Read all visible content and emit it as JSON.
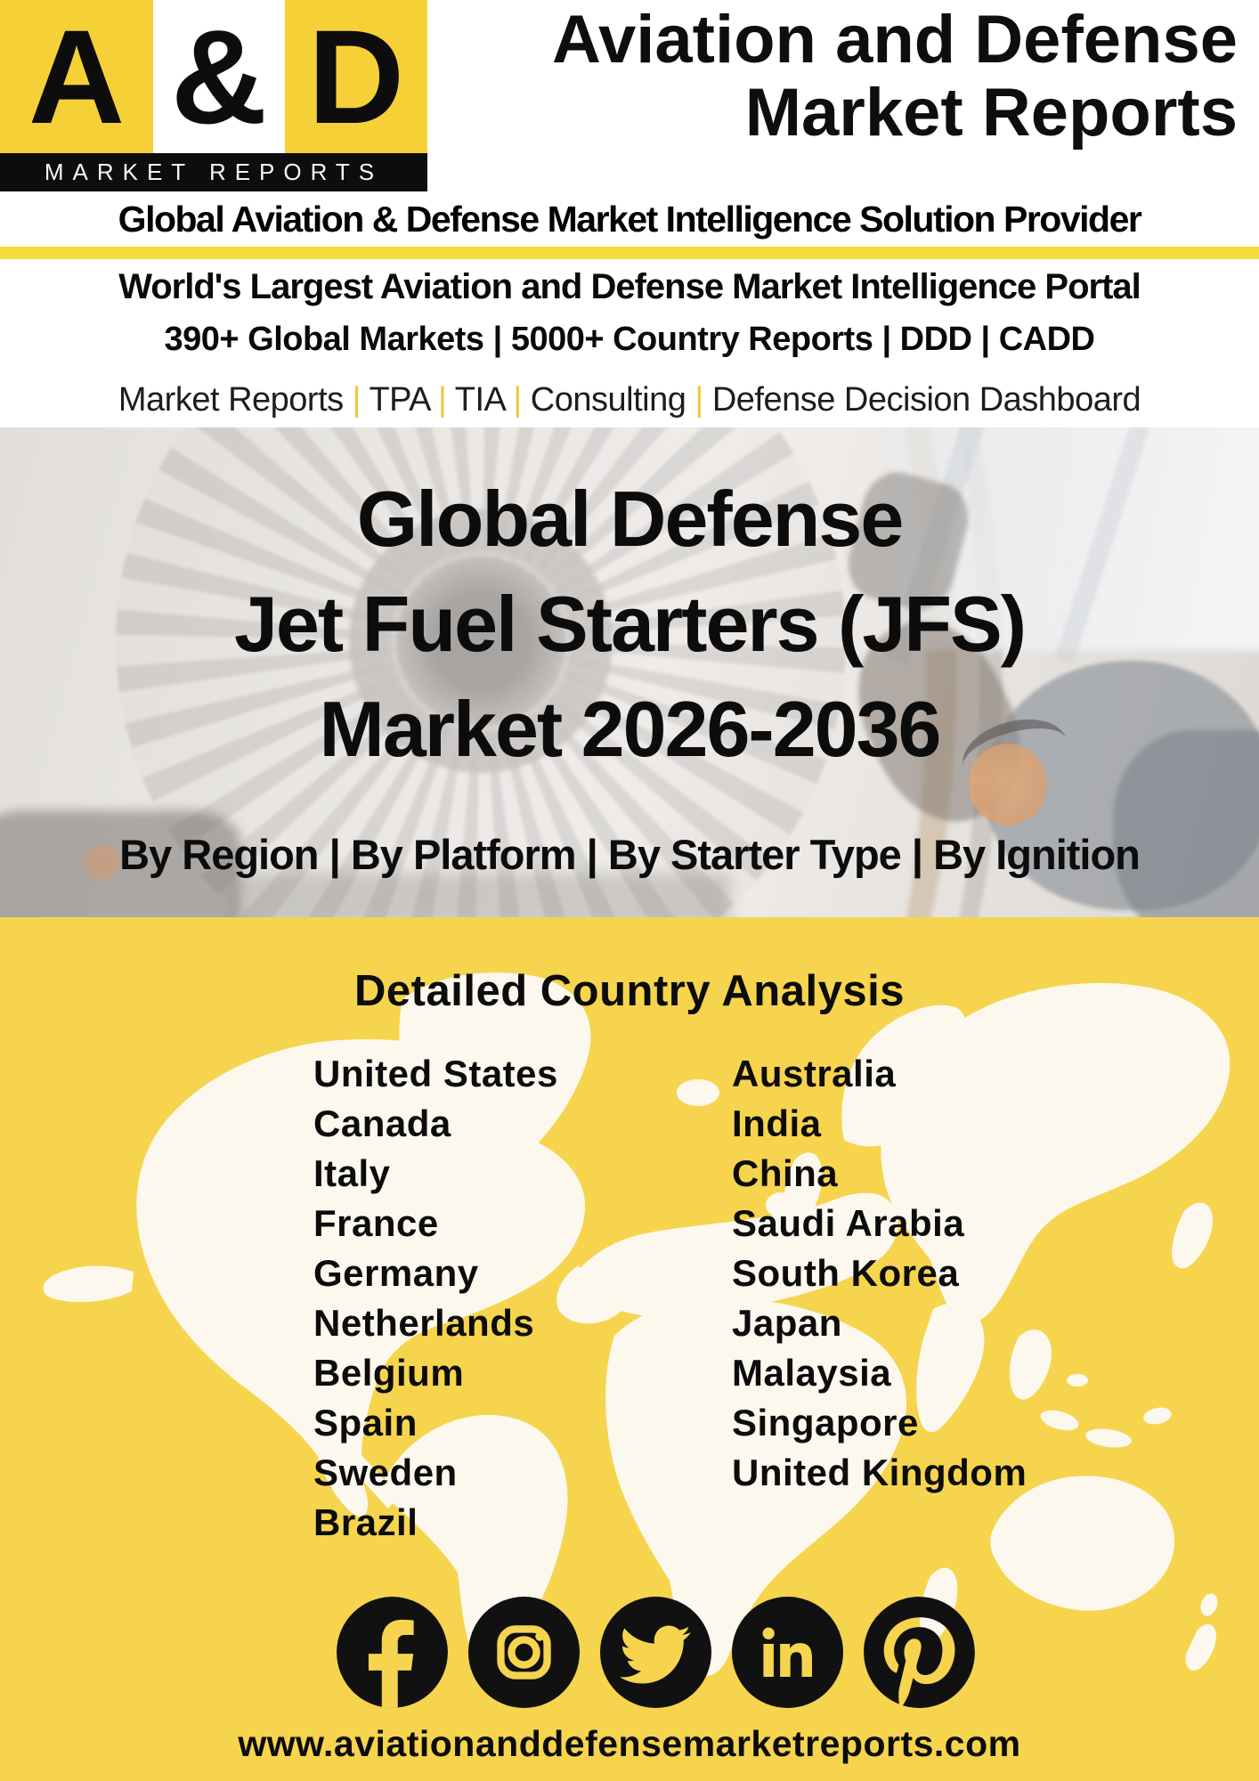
{
  "brand": {
    "logo": {
      "letters": [
        "A",
        "&",
        "D"
      ],
      "caption": "MARKET REPORTS"
    },
    "title_line1": "Aviation and Defense",
    "title_line2": "Market Reports",
    "tagline": "Global Aviation & Defense Market Intelligence Solution Provider"
  },
  "intro": {
    "line1": "World's Largest Aviation and Defense Market Intelligence Portal",
    "line2_parts": [
      "390+ Global Markets",
      "5000+ Country Reports",
      "DDD",
      "CADD"
    ],
    "line3_parts": [
      "Market Reports",
      "TPA",
      "TIA",
      "Consulting",
      "Defense Decision Dashboard"
    ]
  },
  "hero": {
    "title_lines": [
      "Global Defense",
      "Jet Fuel Starters (JFS)",
      "Market 2026-2036"
    ],
    "segments": [
      "By Region",
      "By Platform",
      "By Starter Type",
      "By Ignition"
    ]
  },
  "country_analysis": {
    "title": "Detailed Country Analysis",
    "column1": [
      "United States",
      "Canada",
      "Italy",
      "France",
      "Germany",
      "Netherlands",
      "Belgium",
      "Spain",
      "Sweden",
      "Brazil"
    ],
    "column2": [
      "Australia",
      "India",
      "China",
      "Saudi Arabia",
      "South Korea",
      "Japan",
      "Malaysia",
      "Singapore",
      "United Kingdom"
    ]
  },
  "footer": {
    "social": [
      "facebook",
      "instagram",
      "twitter",
      "linkedin",
      "pinterest"
    ],
    "website": "www.aviationanddefensemarketreports.com"
  },
  "colors": {
    "yellow": "#F6D44E",
    "logo_yellow": "#F5D137",
    "divider_yellow": "#F6DB3D",
    "pipe_yellow": "#F0C63A",
    "black": "#111111",
    "map_white": "#FCF8ED",
    "earmuff_orange": "#D9722E"
  }
}
